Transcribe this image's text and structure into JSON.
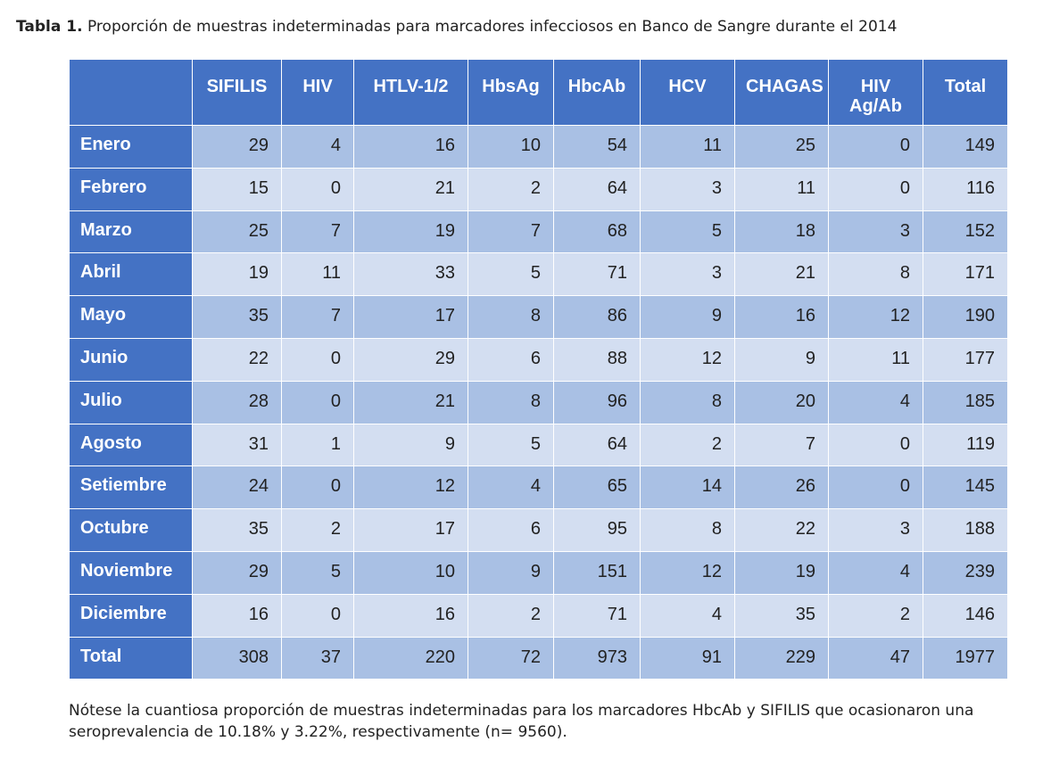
{
  "caption": {
    "label": "Tabla 1.",
    "text": "Proporción de muestras indeterminadas para marcadores infecciosos en Banco de Sangre durante el 2014"
  },
  "table": {
    "columns": [
      "SIFILIS",
      "HIV",
      "HTLV-1/2",
      "HbsAg",
      "HbcAb",
      "HCV",
      "CHAGAS",
      "HIV\nAg/Ab",
      "Total"
    ],
    "rows": [
      {
        "label": "Enero",
        "values": [
          "29",
          "4",
          "16",
          "10",
          "54",
          "11",
          "25",
          "0",
          "149"
        ]
      },
      {
        "label": "Febrero",
        "values": [
          "15",
          "0",
          "21",
          "2",
          "64",
          "3",
          "11",
          "0",
          "116"
        ]
      },
      {
        "label": "Marzo",
        "values": [
          "25",
          "7",
          "19",
          "7",
          "68",
          "5",
          "18",
          "3",
          "152"
        ]
      },
      {
        "label": "Abril",
        "values": [
          "19",
          "11",
          "33",
          "5",
          "71",
          "3",
          "21",
          "8",
          "171"
        ]
      },
      {
        "label": "Mayo",
        "values": [
          "35",
          "7",
          "17",
          "8",
          "86",
          "9",
          "16",
          "12",
          "190"
        ]
      },
      {
        "label": "Junio",
        "values": [
          "22",
          "0",
          "29",
          "6",
          "88",
          "12",
          "9",
          "11",
          "177"
        ]
      },
      {
        "label": "Julio",
        "values": [
          "28",
          "0",
          "21",
          "8",
          "96",
          "8",
          "20",
          "4",
          "185"
        ]
      },
      {
        "label": "Agosto",
        "values": [
          "31",
          "1",
          "9",
          "5",
          "64",
          "2",
          "7",
          "0",
          "119"
        ]
      },
      {
        "label": "Setiembre",
        "values": [
          "24",
          "0",
          "12",
          "4",
          "65",
          "14",
          "26",
          "0",
          "145"
        ]
      },
      {
        "label": "Octubre",
        "values": [
          "35",
          "2",
          "17",
          "6",
          "95",
          "8",
          "22",
          "3",
          "188"
        ]
      },
      {
        "label": "Noviembre",
        "values": [
          "29",
          "5",
          "10",
          "9",
          "151",
          "12",
          "19",
          "4",
          "239"
        ]
      },
      {
        "label": "Diciembre",
        "values": [
          "16",
          "0",
          "16",
          "2",
          "71",
          "4",
          "35",
          "2",
          "146"
        ]
      },
      {
        "label": "Total",
        "values": [
          "308",
          "37",
          "220",
          "72",
          "973",
          "91",
          "229",
          "47",
          "1977"
        ]
      }
    ]
  },
  "note": "Nótese la cuantiosa proporción de muestras indeterminadas para los marcadores HbcAb y SIFILIS que ocasionaron una seroprevalencia de 10.18% y 3.22%, respectivamente (n= 9560).",
  "colors": {
    "header_blue": "#4472c4",
    "row_dark": "#a9c0e4",
    "row_light": "#d3def1"
  }
}
